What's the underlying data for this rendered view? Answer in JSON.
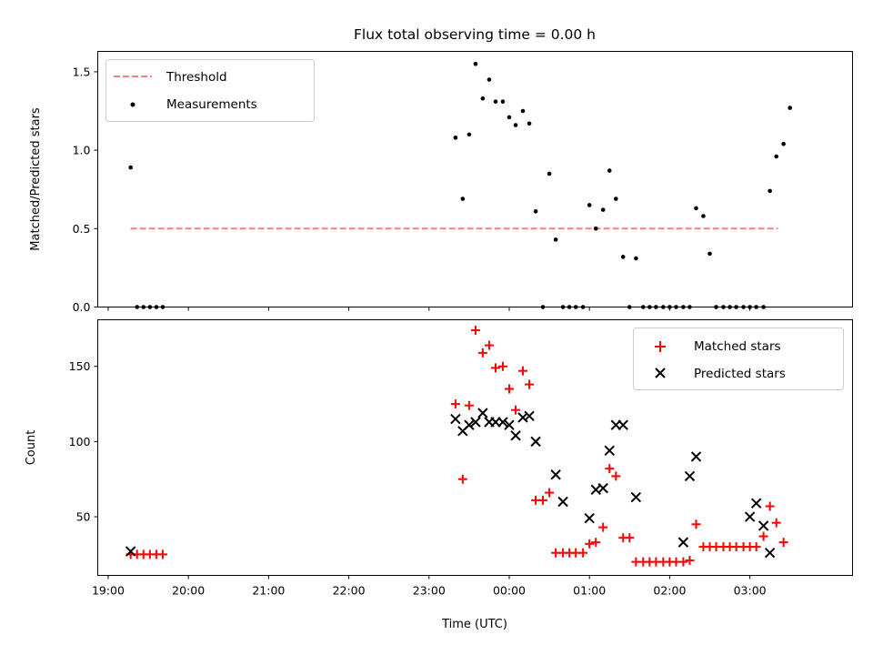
{
  "chart_data": [
    {
      "type": "scatter",
      "panel": "top",
      "title": "Flux total observing time = 0.00 h",
      "xlabel": "",
      "ylabel": "Matched/Predicted stars",
      "ylim": [
        0,
        1.63
      ],
      "yticks": [
        0.0,
        0.5,
        1.0,
        1.5
      ],
      "ytick_labels": [
        "0.0",
        "0.5",
        "1.0",
        "1.5"
      ],
      "legend": {
        "placement": "top-left",
        "entries": [
          "Threshold",
          "Measurements"
        ]
      },
      "threshold": {
        "name": "Threshold",
        "value": 0.5,
        "x_start": 19.28,
        "x_end": 27.35,
        "color": "#ff7f7f"
      },
      "series": [
        {
          "name": "Measurements",
          "color": "#000000",
          "marker": "dot",
          "points": [
            [
              19.28,
              0.89
            ],
            [
              19.36,
              0.0
            ],
            [
              19.44,
              0.0
            ],
            [
              19.52,
              0.0
            ],
            [
              19.6,
              0.0
            ],
            [
              19.68,
              0.0
            ],
            [
              23.33,
              1.08
            ],
            [
              23.42,
              0.69
            ],
            [
              23.5,
              1.1
            ],
            [
              23.58,
              1.55
            ],
            [
              23.67,
              1.33
            ],
            [
              23.75,
              1.45
            ],
            [
              23.83,
              1.31
            ],
            [
              23.92,
              1.31
            ],
            [
              24.0,
              1.21
            ],
            [
              24.08,
              1.16
            ],
            [
              24.17,
              1.25
            ],
            [
              24.25,
              1.17
            ],
            [
              24.33,
              0.61
            ],
            [
              24.42,
              0.0
            ],
            [
              24.5,
              0.85
            ],
            [
              24.58,
              0.43
            ],
            [
              24.67,
              0.0
            ],
            [
              24.75,
              0.0
            ],
            [
              24.83,
              0.0
            ],
            [
              24.92,
              0.0
            ],
            [
              25.0,
              0.65
            ],
            [
              25.08,
              0.5
            ],
            [
              25.17,
              0.62
            ],
            [
              25.25,
              0.87
            ],
            [
              25.33,
              0.69
            ],
            [
              25.42,
              0.32
            ],
            [
              25.5,
              0.0
            ],
            [
              25.58,
              0.31
            ],
            [
              25.67,
              0.0
            ],
            [
              25.75,
              0.0
            ],
            [
              25.83,
              0.0
            ],
            [
              25.92,
              0.0
            ],
            [
              26.0,
              0.0
            ],
            [
              26.08,
              0.0
            ],
            [
              26.17,
              0.0
            ],
            [
              26.25,
              0.0
            ],
            [
              26.33,
              0.63
            ],
            [
              26.42,
              0.58
            ],
            [
              26.5,
              0.34
            ],
            [
              26.58,
              0.0
            ],
            [
              26.67,
              0.0
            ],
            [
              26.75,
              0.0
            ],
            [
              26.83,
              0.0
            ],
            [
              26.92,
              0.0
            ],
            [
              27.0,
              0.0
            ],
            [
              27.08,
              0.0
            ],
            [
              27.17,
              0.0
            ],
            [
              27.25,
              0.74
            ],
            [
              27.33,
              0.96
            ],
            [
              27.42,
              1.04
            ],
            [
              27.5,
              1.27
            ]
          ]
        }
      ]
    },
    {
      "type": "scatter",
      "panel": "bottom",
      "title": "",
      "xlabel": "Time (UTC)",
      "ylabel": "Count",
      "xlim": [
        18.87,
        28.28
      ],
      "ylim": [
        11,
        181
      ],
      "xticks": [
        19,
        20,
        21,
        22,
        23,
        24,
        25,
        26,
        27
      ],
      "xtick_labels": [
        "19:00",
        "20:00",
        "21:00",
        "22:00",
        "23:00",
        "00:00",
        "01:00",
        "02:00",
        "03:00"
      ],
      "yticks": [
        50,
        100,
        150
      ],
      "ytick_labels": [
        "50",
        "100",
        "150"
      ],
      "legend": {
        "placement": "top-right",
        "entries": [
          "Matched stars",
          "Predicted stars"
        ]
      },
      "series": [
        {
          "name": "Matched stars",
          "color": "#ff0000",
          "marker": "plus",
          "points": [
            [
              19.28,
              25
            ],
            [
              19.36,
              25
            ],
            [
              19.44,
              25
            ],
            [
              19.52,
              25
            ],
            [
              19.6,
              25
            ],
            [
              19.68,
              25
            ],
            [
              23.33,
              125
            ],
            [
              23.42,
              75
            ],
            [
              23.5,
              124
            ],
            [
              23.58,
              174
            ],
            [
              23.67,
              159
            ],
            [
              23.75,
              164
            ],
            [
              23.83,
              149
            ],
            [
              23.92,
              150
            ],
            [
              24.0,
              135
            ],
            [
              24.08,
              121
            ],
            [
              24.17,
              147
            ],
            [
              24.25,
              138
            ],
            [
              24.33,
              61
            ],
            [
              24.42,
              61
            ],
            [
              24.5,
              66
            ],
            [
              24.58,
              26
            ],
            [
              24.67,
              26
            ],
            [
              24.75,
              26
            ],
            [
              24.83,
              26
            ],
            [
              24.92,
              26
            ],
            [
              25.0,
              32
            ],
            [
              25.08,
              33
            ],
            [
              25.17,
              43
            ],
            [
              25.25,
              82
            ],
            [
              25.33,
              77
            ],
            [
              25.42,
              36
            ],
            [
              25.5,
              36
            ],
            [
              25.58,
              20
            ],
            [
              25.67,
              20
            ],
            [
              25.75,
              20
            ],
            [
              25.83,
              20
            ],
            [
              25.92,
              20
            ],
            [
              26.0,
              20
            ],
            [
              26.08,
              20
            ],
            [
              26.17,
              20
            ],
            [
              26.25,
              21
            ],
            [
              26.33,
              45
            ],
            [
              26.42,
              30
            ],
            [
              26.5,
              30
            ],
            [
              26.58,
              30
            ],
            [
              26.67,
              30
            ],
            [
              26.75,
              30
            ],
            [
              26.83,
              30
            ],
            [
              26.92,
              30
            ],
            [
              27.0,
              30
            ],
            [
              27.08,
              30
            ],
            [
              27.17,
              37
            ],
            [
              27.25,
              57
            ],
            [
              27.33,
              46
            ],
            [
              27.42,
              33
            ]
          ]
        },
        {
          "name": "Predicted stars",
          "color": "#000000",
          "marker": "x",
          "points": [
            [
              19.28,
              27
            ],
            [
              23.33,
              115
            ],
            [
              23.42,
              107
            ],
            [
              23.5,
              111
            ],
            [
              23.58,
              113
            ],
            [
              23.67,
              119
            ],
            [
              23.75,
              113
            ],
            [
              23.83,
              113
            ],
            [
              23.92,
              113
            ],
            [
              24.0,
              111
            ],
            [
              24.08,
              104
            ],
            [
              24.17,
              116
            ],
            [
              24.25,
              117
            ],
            [
              24.33,
              100
            ],
            [
              24.58,
              78
            ],
            [
              24.67,
              60
            ],
            [
              25.0,
              49
            ],
            [
              25.08,
              68
            ],
            [
              25.17,
              69
            ],
            [
              25.25,
              94
            ],
            [
              25.33,
              111
            ],
            [
              25.42,
              111
            ],
            [
              25.58,
              63
            ],
            [
              26.17,
              33
            ],
            [
              26.25,
              77
            ],
            [
              26.33,
              90
            ],
            [
              27.0,
              50
            ],
            [
              27.08,
              59
            ],
            [
              27.17,
              44
            ],
            [
              27.25,
              26
            ]
          ]
        }
      ]
    }
  ]
}
